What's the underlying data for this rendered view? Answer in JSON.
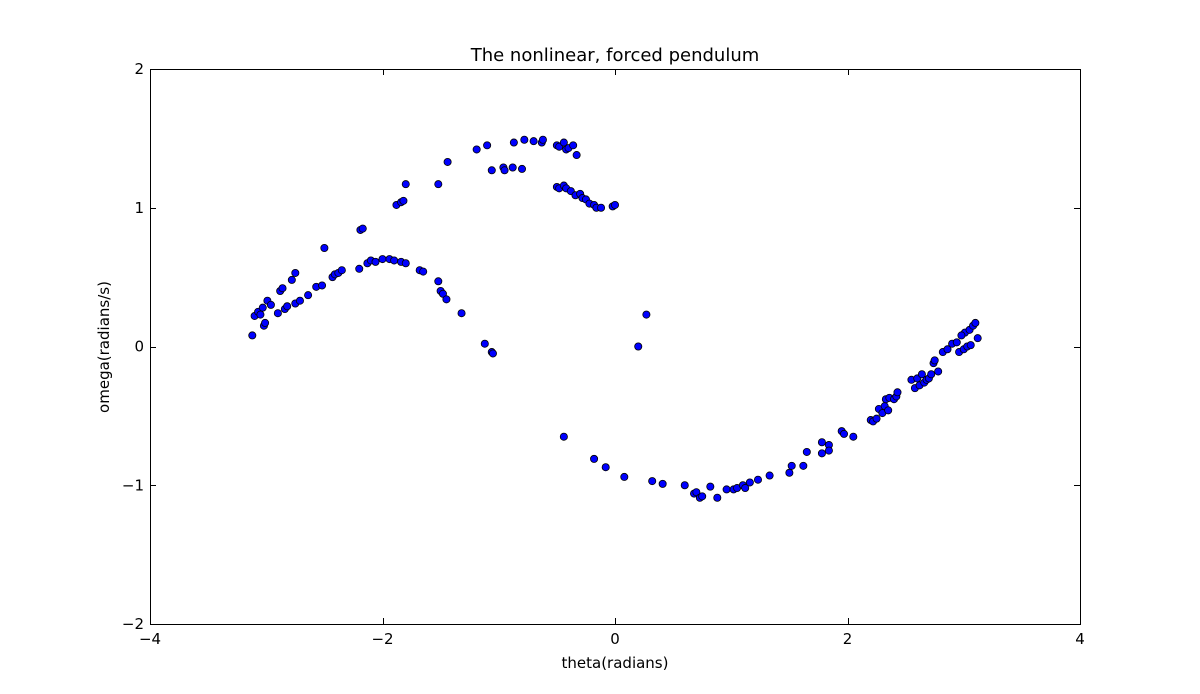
{
  "chart_data": {
    "type": "scatter",
    "title": "The nonlinear, forced pendulum",
    "xlabel": "theta(radians)",
    "ylabel": "omega(radians/s)",
    "xlim": [
      -4,
      4
    ],
    "ylim": [
      -2,
      2
    ],
    "xticks": [
      -4,
      -2,
      0,
      2,
      4
    ],
    "yticks": [
      -2,
      -1,
      0,
      1,
      2
    ],
    "xtick_labels": [
      "−4",
      "−2",
      "0",
      "2",
      "4"
    ],
    "ytick_labels": [
      "−2",
      "−1",
      "0",
      "1",
      "2"
    ],
    "grid": false,
    "legend": "none",
    "marker_color": "#0000ff",
    "edge_color": "#000000",
    "points": [
      [
        -3.12,
        0.08
      ],
      [
        -3.1,
        0.22
      ],
      [
        -3.07,
        0.25
      ],
      [
        -3.05,
        0.23
      ],
      [
        -3.03,
        0.28
      ],
      [
        -3.02,
        0.15
      ],
      [
        -3.01,
        0.17
      ],
      [
        -2.99,
        0.33
      ],
      [
        -2.96,
        0.3
      ],
      [
        -2.9,
        0.24
      ],
      [
        -2.88,
        0.4
      ],
      [
        -2.86,
        0.42
      ],
      [
        -2.84,
        0.27
      ],
      [
        -2.82,
        0.29
      ],
      [
        -2.78,
        0.48
      ],
      [
        -2.75,
        0.53
      ],
      [
        -2.75,
        0.31
      ],
      [
        -2.71,
        0.33
      ],
      [
        -2.64,
        0.37
      ],
      [
        -2.57,
        0.43
      ],
      [
        -2.52,
        0.44
      ],
      [
        -2.5,
        0.71
      ],
      [
        -2.43,
        0.5
      ],
      [
        -2.41,
        0.52
      ],
      [
        -2.38,
        0.53
      ],
      [
        -2.35,
        0.55
      ],
      [
        -2.2,
        0.56
      ],
      [
        -2.19,
        0.84
      ],
      [
        -2.17,
        0.85
      ],
      [
        -2.13,
        0.6
      ],
      [
        -2.1,
        0.62
      ],
      [
        -2.06,
        0.61
      ],
      [
        -2.0,
        0.63
      ],
      [
        -1.94,
        0.63
      ],
      [
        -1.9,
        0.62
      ],
      [
        -1.84,
        0.61
      ],
      [
        -1.8,
        0.6
      ],
      [
        -1.88,
        1.02
      ],
      [
        -1.84,
        1.04
      ],
      [
        -1.82,
        1.05
      ],
      [
        -1.8,
        1.17
      ],
      [
        -1.68,
        0.55
      ],
      [
        -1.65,
        0.54
      ],
      [
        -1.52,
        0.47
      ],
      [
        -1.5,
        0.4
      ],
      [
        -1.48,
        0.38
      ],
      [
        -1.45,
        0.34
      ],
      [
        -1.32,
        0.24
      ],
      [
        -1.52,
        1.17
      ],
      [
        -1.44,
        1.33
      ],
      [
        -1.19,
        1.42
      ],
      [
        -1.1,
        1.45
      ],
      [
        -1.12,
        0.02
      ],
      [
        -1.06,
        -0.04
      ],
      [
        -1.05,
        -0.05
      ],
      [
        -1.06,
        1.27
      ],
      [
        -0.96,
        1.29
      ],
      [
        -0.95,
        1.27
      ],
      [
        -0.88,
        1.29
      ],
      [
        -0.8,
        1.28
      ],
      [
        -0.87,
        1.47
      ],
      [
        -0.78,
        1.49
      ],
      [
        -0.7,
        1.48
      ],
      [
        -0.63,
        1.47
      ],
      [
        -0.62,
        1.49
      ],
      [
        -0.5,
        1.45
      ],
      [
        -0.48,
        1.44
      ],
      [
        -0.44,
        1.47
      ],
      [
        -0.42,
        1.42
      ],
      [
        -0.4,
        1.43
      ],
      [
        -0.36,
        1.45
      ],
      [
        -0.33,
        1.38
      ],
      [
        -0.5,
        1.15
      ],
      [
        -0.48,
        1.14
      ],
      [
        -0.44,
        1.16
      ],
      [
        -0.42,
        1.14
      ],
      [
        -0.38,
        1.12
      ],
      [
        -0.34,
        1.09
      ],
      [
        -0.3,
        1.1
      ],
      [
        -0.28,
        1.07
      ],
      [
        -0.25,
        1.06
      ],
      [
        -0.22,
        1.03
      ],
      [
        -0.18,
        1.02
      ],
      [
        -0.16,
        1.0
      ],
      [
        -0.12,
        1.0
      ],
      [
        -0.02,
        1.01
      ],
      [
        0.0,
        1.02
      ],
      [
        0.2,
        0.0
      ],
      [
        0.27,
        0.23
      ],
      [
        -0.44,
        -0.65
      ],
      [
        -0.18,
        -0.81
      ],
      [
        -0.08,
        -0.87
      ],
      [
        0.08,
        -0.94
      ],
      [
        0.32,
        -0.97
      ],
      [
        0.41,
        -0.99
      ],
      [
        0.6,
        -1.0
      ],
      [
        0.68,
        -1.06
      ],
      [
        0.7,
        -1.05
      ],
      [
        0.73,
        -1.09
      ],
      [
        0.75,
        -1.08
      ],
      [
        0.82,
        -1.01
      ],
      [
        0.88,
        -1.09
      ],
      [
        0.96,
        -1.03
      ],
      [
        1.02,
        -1.03
      ],
      [
        1.05,
        -1.02
      ],
      [
        1.1,
        -1.0
      ],
      [
        1.12,
        -1.02
      ],
      [
        1.16,
        -0.98
      ],
      [
        1.23,
        -0.96
      ],
      [
        1.33,
        -0.93
      ],
      [
        1.5,
        -0.91
      ],
      [
        1.52,
        -0.86
      ],
      [
        1.62,
        -0.86
      ],
      [
        1.65,
        -0.76
      ],
      [
        1.78,
        -0.69
      ],
      [
        1.78,
        -0.77
      ],
      [
        1.84,
        -0.71
      ],
      [
        1.84,
        -0.75
      ],
      [
        1.95,
        -0.61
      ],
      [
        1.97,
        -0.63
      ],
      [
        2.05,
        -0.65
      ],
      [
        2.2,
        -0.53
      ],
      [
        2.22,
        -0.54
      ],
      [
        2.25,
        -0.52
      ],
      [
        2.27,
        -0.45
      ],
      [
        2.3,
        -0.48
      ],
      [
        2.32,
        -0.43
      ],
      [
        2.33,
        -0.38
      ],
      [
        2.35,
        -0.46
      ],
      [
        2.36,
        -0.37
      ],
      [
        2.4,
        -0.38
      ],
      [
        2.42,
        -0.36
      ],
      [
        2.43,
        -0.33
      ],
      [
        2.55,
        -0.24
      ],
      [
        2.58,
        -0.3
      ],
      [
        2.6,
        -0.23
      ],
      [
        2.62,
        -0.28
      ],
      [
        2.64,
        -0.2
      ],
      [
        2.66,
        -0.26
      ],
      [
        2.68,
        -0.24
      ],
      [
        2.7,
        -0.23
      ],
      [
        2.72,
        -0.2
      ],
      [
        2.74,
        -0.12
      ],
      [
        2.75,
        -0.1
      ],
      [
        2.78,
        -0.18
      ],
      [
        2.82,
        -0.04
      ],
      [
        2.86,
        -0.02
      ],
      [
        2.9,
        0.02
      ],
      [
        2.94,
        0.03
      ],
      [
        2.96,
        -0.04
      ],
      [
        3.0,
        -0.02
      ],
      [
        3.01,
        0.1
      ],
      [
        3.03,
        0.0
      ],
      [
        3.05,
        0.12
      ],
      [
        3.06,
        0.01
      ],
      [
        3.08,
        0.15
      ],
      [
        3.1,
        0.17
      ],
      [
        3.12,
        0.06
      ],
      [
        2.98,
        0.08
      ]
    ]
  }
}
